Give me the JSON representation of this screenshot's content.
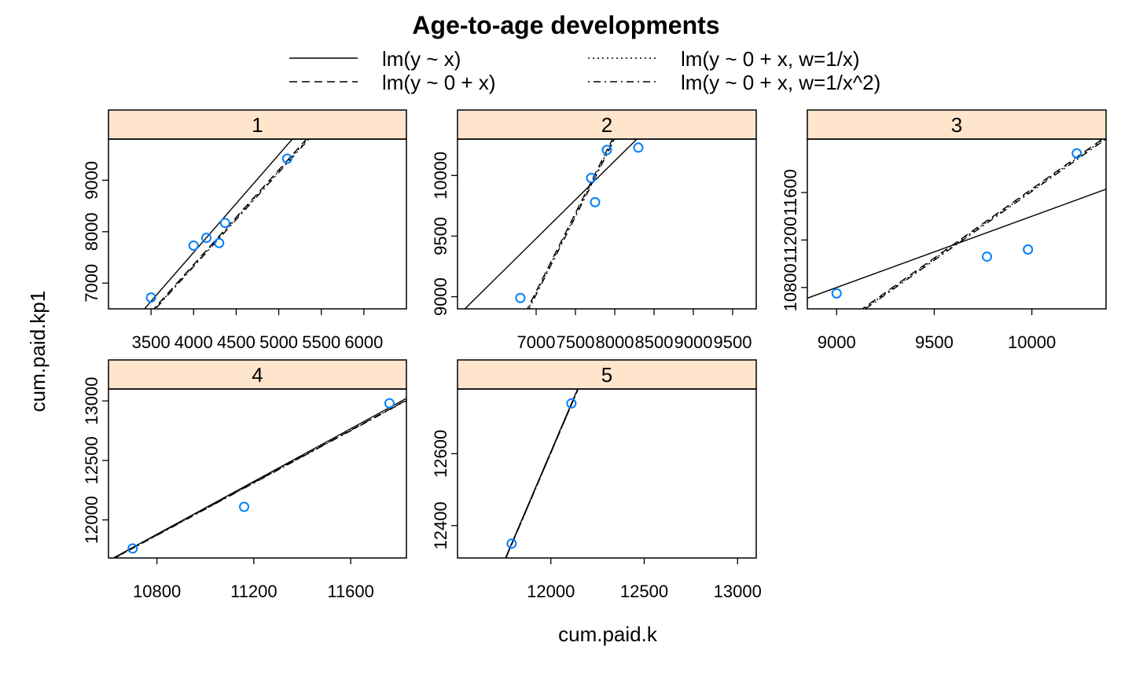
{
  "chart_data": {
    "type": "scatter",
    "title": "Age-to-age developments",
    "xlabel": "cum.paid.k",
    "ylabel": "cum.paid.kp1",
    "colors": {
      "points": "#0080ff",
      "strip": "#ffe5cc",
      "lines": "#000000"
    },
    "legend": {
      "placement": "top",
      "entries": [
        {
          "label": "lm(y ~ x)",
          "style": "solid"
        },
        {
          "label": "lm(y ~ 0 + x, w=1/x)",
          "style": "dotted"
        },
        {
          "label": "lm(y ~ 0 + x)",
          "style": "dashed"
        },
        {
          "label": "lm(y ~ 0 + x, w=1/x^2)",
          "style": "dotdash"
        }
      ]
    },
    "panels": [
      {
        "label": "1",
        "xlim": [
          3000,
          6500
        ],
        "ylim": [
          6500,
          9800
        ],
        "xticks": [
          3500,
          4000,
          4500,
          5000,
          5500,
          6000
        ],
        "yticks": [
          7000,
          8000,
          9000
        ],
        "points": [
          [
            3500,
            6720
          ],
          [
            4000,
            7730
          ],
          [
            4150,
            7880
          ],
          [
            4300,
            7780
          ],
          [
            4370,
            8170
          ],
          [
            5100,
            9420
          ]
        ],
        "fits": [
          {
            "style": "solid",
            "a": -2.9,
            "b": 1.9
          },
          {
            "style": "dashed",
            "a": 0,
            "b": 1.84
          },
          {
            "style": "dotted",
            "a": 0,
            "b": 1.835
          },
          {
            "style": "dotdash",
            "a": 0,
            "b": 1.83
          }
        ]
      },
      {
        "label": "2",
        "xlim": [
          6000,
          9800
        ],
        "ylim": [
          8900,
          10300
        ],
        "xticks": [
          7000,
          7500,
          8000,
          8500,
          9000,
          9500
        ],
        "yticks": [
          9000,
          9500,
          10000
        ],
        "points": [
          [
            6800,
            8990
          ],
          [
            7700,
            9980
          ],
          [
            7750,
            9780
          ],
          [
            7900,
            10210
          ],
          [
            8300,
            10230
          ]
        ],
        "fits": [
          {
            "style": "solid",
            "a": 5000,
            "b": 0.64
          },
          {
            "style": "dashed",
            "a": 0,
            "b": 1.292
          },
          {
            "style": "dotted",
            "a": 0,
            "b": 1.29
          },
          {
            "style": "dotdash",
            "a": 0,
            "b": 1.288
          }
        ]
      },
      {
        "label": "3",
        "xlim": [
          8850,
          10380
        ],
        "ylim": [
          10620,
          12050
        ],
        "xticks": [
          9000,
          9500,
          10000
        ],
        "yticks": [
          10800,
          11200,
          11600
        ],
        "points": [
          [
            9000,
            10750
          ],
          [
            9770,
            11060
          ],
          [
            9980,
            11120
          ],
          [
            10230,
            11930
          ]
        ],
        "fits": [
          {
            "style": "solid",
            "a": 5400,
            "b": 0.6
          },
          {
            "style": "dashed",
            "a": 0,
            "b": 1.163
          },
          {
            "style": "dotted",
            "a": 0,
            "b": 1.162
          },
          {
            "style": "dotdash",
            "a": 0,
            "b": 1.161
          }
        ]
      },
      {
        "label": "4",
        "xlim": [
          10600,
          11830
        ],
        "ylim": [
          11680,
          13100
        ],
        "xticks": [
          10800,
          11200,
          11600
        ],
        "yticks": [
          12000,
          12500,
          13000
        ],
        "points": [
          [
            10700,
            11760
          ],
          [
            11160,
            12110
          ],
          [
            11760,
            12980
          ]
        ],
        "fits": [
          {
            "style": "solid",
            "a": -98,
            "b": 1.109
          },
          {
            "style": "dashed",
            "a": 0,
            "b": 1.0995
          },
          {
            "style": "dotted",
            "a": 0,
            "b": 1.0993
          },
          {
            "style": "dotdash",
            "a": 0,
            "b": 1.0991
          }
        ]
      },
      {
        "label": "5",
        "xlim": [
          11500,
          13100
        ],
        "ylim": [
          12310,
          12780
        ],
        "xticks": [
          12000,
          12500,
          13000
        ],
        "yticks": [
          12400,
          12600
        ],
        "points": [
          [
            11790,
            12350
          ],
          [
            12110,
            12740
          ]
        ],
        "fits": [
          {
            "style": "solid",
            "a": -1990,
            "b": 1.2163
          },
          {
            "style": "dashed",
            "a": -1970,
            "b": 1.2144
          },
          {
            "style": "dotted",
            "a": -1975,
            "b": 1.2148
          },
          {
            "style": "dotdash",
            "a": -1980,
            "b": 1.2152
          }
        ]
      }
    ]
  }
}
